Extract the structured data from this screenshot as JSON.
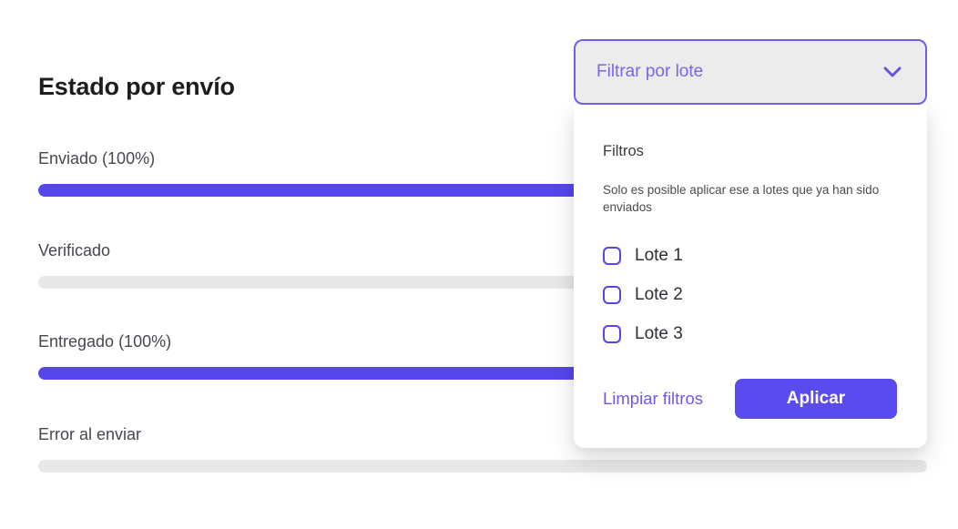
{
  "colors": {
    "accent_purple": "#5646ee",
    "button_text_purple": "#7866eb",
    "track_gray": "#e9e8e8",
    "dropdown_bg": "#edecec",
    "apply_bg": "#5a4bee"
  },
  "chart": {
    "title": "Estado por envío",
    "type": "bar",
    "rows": [
      {
        "label": "Enviado (100%)",
        "percent": 100
      },
      {
        "label": "Verificado",
        "percent": 0
      },
      {
        "label": "Entregado (100%)",
        "percent": 100
      },
      {
        "label": "Error al enviar",
        "percent": 0
      }
    ]
  },
  "filter": {
    "button_label": "Filtrar por lote",
    "chevron_icon": "chevron-down",
    "panel": {
      "heading": "Filtros",
      "description": "Solo es posible aplicar ese a lotes que ya han sido enviados",
      "options": [
        {
          "label": "Lote 1",
          "checked": false
        },
        {
          "label": "Lote 2",
          "checked": false
        },
        {
          "label": "Lote 3",
          "checked": false
        }
      ],
      "clear_label": "Limpiar filtros",
      "apply_label": "Aplicar"
    }
  }
}
